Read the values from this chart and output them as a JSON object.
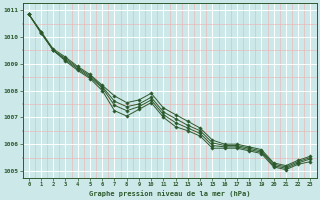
{
  "title": "Graphe pression niveau de la mer (hPa)",
  "bg_color": "#cce8e8",
  "grid_color_major": "#ffffff",
  "grid_color_minor": "#f0b0b0",
  "line_color": "#2d5a2d",
  "marker_color": "#2d5a2d",
  "xlim": [
    -0.5,
    23.5
  ],
  "ylim": [
    1004.75,
    1011.25
  ],
  "yticks": [
    1005,
    1006,
    1007,
    1008,
    1009,
    1010,
    1011
  ],
  "xticks": [
    0,
    1,
    2,
    3,
    4,
    5,
    6,
    7,
    8,
    9,
    10,
    11,
    12,
    13,
    14,
    15,
    16,
    17,
    18,
    19,
    20,
    21,
    22,
    23
  ],
  "series": [
    [
      1010.85,
      1010.15,
      1009.5,
      1009.1,
      1008.75,
      1008.45,
      1008.0,
      1007.25,
      1007.05,
      1007.3,
      1007.55,
      1007.0,
      1006.65,
      1006.5,
      1006.3,
      1005.85,
      1005.85,
      1005.85,
      1005.75,
      1005.65,
      1005.15,
      1005.05,
      1005.25,
      1005.35
    ],
    [
      1010.85,
      1010.15,
      1009.5,
      1009.15,
      1008.8,
      1008.5,
      1008.1,
      1007.45,
      1007.25,
      1007.4,
      1007.65,
      1007.1,
      1006.8,
      1006.6,
      1006.4,
      1005.95,
      1005.9,
      1005.9,
      1005.8,
      1005.7,
      1005.2,
      1005.1,
      1005.3,
      1005.45
    ],
    [
      1010.85,
      1010.2,
      1009.5,
      1009.2,
      1008.85,
      1008.55,
      1008.15,
      1007.6,
      1007.4,
      1007.5,
      1007.75,
      1007.2,
      1006.95,
      1006.7,
      1006.5,
      1006.05,
      1005.95,
      1005.95,
      1005.85,
      1005.75,
      1005.25,
      1005.15,
      1005.35,
      1005.5
    ],
    [
      1010.85,
      1010.2,
      1009.55,
      1009.25,
      1008.9,
      1008.6,
      1008.2,
      1007.8,
      1007.55,
      1007.65,
      1007.9,
      1007.35,
      1007.1,
      1006.85,
      1006.6,
      1006.15,
      1006.0,
      1006.0,
      1005.9,
      1005.8,
      1005.3,
      1005.2,
      1005.4,
      1005.55
    ]
  ]
}
